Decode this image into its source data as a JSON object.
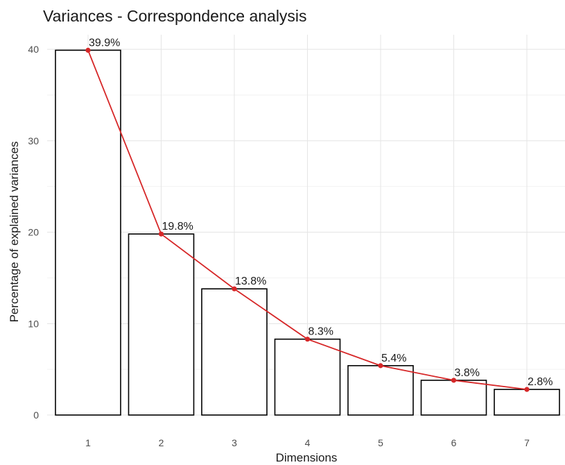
{
  "chart_data": {
    "type": "bar",
    "title": "Variances - Correspondence analysis",
    "xlabel": "Dimensions",
    "ylabel": "Percentage of explained variances",
    "categories": [
      "1",
      "2",
      "3",
      "4",
      "5",
      "6",
      "7"
    ],
    "values": [
      39.9,
      19.8,
      13.8,
      8.3,
      5.4,
      3.8,
      2.8
    ],
    "data_labels": [
      "39.9%",
      "19.8%",
      "13.8%",
      "8.3%",
      "5.4%",
      "3.8%",
      "2.8%"
    ],
    "ylim": [
      0,
      41.6
    ],
    "yticks": [
      0,
      10,
      20,
      30,
      40
    ],
    "grid": true,
    "bar_fill": "#ffffff",
    "bar_stroke": "#000000",
    "line_color": "#d62728",
    "overlay": "line-with-points"
  }
}
